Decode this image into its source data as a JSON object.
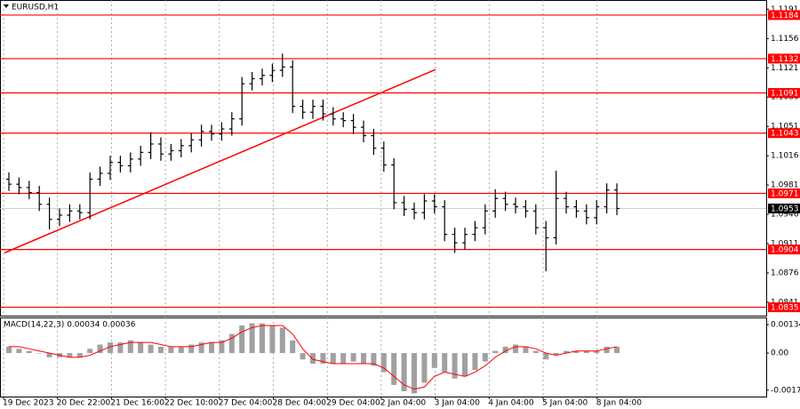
{
  "chart_data": {
    "type": "candlestick",
    "title": "EURUSD,H1",
    "x_labels": [
      "19 Dec 2023",
      "20 Dec 22:00",
      "21 Dec 16:00",
      "22 Dec 10:00",
      "27 Dec 04:00",
      "28 Dec 04:00",
      "29 Dec 04:00",
      "2 Jan 04:00",
      "3 Jan 04:00",
      "4 Jan 04:00",
      "5 Jan 04:00",
      "8 Jan 04:00"
    ],
    "open": [
      1.0988,
      1.0982,
      1.0978,
      1.0972,
      1.0958,
      1.094,
      1.0945,
      1.095,
      1.0948,
      1.0988,
      1.0995,
      1.1008,
      1.1004,
      1.1012,
      1.102,
      1.103,
      1.1018,
      1.1022,
      1.1028,
      1.1035,
      1.1045,
      1.1042,
      1.1048,
      1.106,
      1.1102,
      1.1108,
      1.1112,
      1.1118,
      1.1122,
      1.1075,
      1.1068,
      1.1075,
      1.1066,
      1.106,
      1.1058,
      1.105,
      1.104,
      1.1025,
      1.1005,
      1.096,
      1.0952,
      1.0948,
      1.0962,
      1.0955,
      1.0922,
      1.0912,
      1.0922,
      1.093,
      1.095,
      1.0965,
      1.0958,
      1.0955,
      1.095,
      1.093,
      1.0918,
      1.0965,
      1.0955,
      1.095,
      1.0942,
      1.0955,
      1.0975
    ],
    "high": [
      1.0996,
      1.099,
      1.0986,
      1.098,
      1.0966,
      1.0953,
      1.0958,
      1.0958,
      1.0996,
      1.1003,
      1.1016,
      1.1016,
      1.102,
      1.1028,
      1.1044,
      1.1038,
      1.103,
      1.1036,
      1.1043,
      1.1053,
      1.1053,
      1.1056,
      1.1068,
      1.111,
      1.1116,
      1.112,
      1.1126,
      1.1138,
      1.113,
      1.1083,
      1.1083,
      1.1083,
      1.1074,
      1.1068,
      1.1066,
      1.1058,
      1.1048,
      1.1033,
      1.1013,
      1.0968,
      1.096,
      1.097,
      1.097,
      1.0963,
      1.093,
      1.093,
      1.0938,
      1.0958,
      1.0976,
      1.0973,
      1.0966,
      1.0963,
      1.0958,
      1.0938,
      1.0998,
      1.0973,
      1.0963,
      1.0958,
      1.0963,
      1.0983,
      1.0983
    ],
    "low": [
      1.0974,
      1.097,
      1.0964,
      1.095,
      1.0928,
      1.0932,
      1.0937,
      1.094,
      1.094,
      1.098,
      1.0987,
      1.0996,
      1.0996,
      1.1004,
      1.1012,
      1.101,
      1.101,
      1.1014,
      1.102,
      1.1027,
      1.1034,
      1.1034,
      1.104,
      1.1052,
      1.1094,
      1.11,
      1.1104,
      1.111,
      1.1067,
      1.106,
      1.106,
      1.1058,
      1.1052,
      1.105,
      1.1042,
      1.1032,
      1.1017,
      1.0997,
      1.0952,
      1.0944,
      1.094,
      1.094,
      1.0947,
      1.0914,
      1.09,
      1.0904,
      1.0914,
      1.0922,
      1.0942,
      1.095,
      1.0947,
      1.0942,
      1.0922,
      1.0878,
      1.091,
      1.0947,
      1.0942,
      1.0934,
      1.0934,
      1.0947,
      1.0945
    ],
    "close": [
      1.0982,
      1.0978,
      1.0972,
      1.0958,
      1.094,
      1.0945,
      1.095,
      1.0948,
      1.0988,
      1.0995,
      1.1008,
      1.1004,
      1.1012,
      1.102,
      1.103,
      1.1018,
      1.1022,
      1.1028,
      1.1035,
      1.1045,
      1.1042,
      1.1048,
      1.106,
      1.1102,
      1.1108,
      1.1112,
      1.1118,
      1.1122,
      1.1075,
      1.1068,
      1.1075,
      1.1066,
      1.106,
      1.1058,
      1.105,
      1.104,
      1.1025,
      1.1005,
      1.096,
      1.0952,
      1.0948,
      1.0962,
      1.0955,
      1.0922,
      1.0912,
      1.0922,
      1.093,
      1.095,
      1.0965,
      1.0958,
      1.0955,
      1.095,
      1.093,
      1.0918,
      1.0965,
      1.0955,
      1.095,
      1.0942,
      1.0955,
      1.0975,
      1.0953
    ],
    "color": "#000000",
    "ylim": [
      1.0825,
      1.1202
    ],
    "yticks": [
      1.1191,
      1.1156,
      1.1121,
      1.1086,
      1.1051,
      1.1016,
      1.0981,
      1.0946,
      1.0911,
      1.0876,
      1.0841
    ],
    "grid": true,
    "levels": {
      "values": [
        1.1184,
        1.1132,
        1.1091,
        1.1043,
        1.0971,
        1.0904,
        1.0835
      ],
      "color": "#ff0000"
    },
    "current_price": 1.0953,
    "trend_line": {
      "start": 1.09,
      "end": 1.1119,
      "color": "#ff0000"
    },
    "macd": {
      "title": "MACD(14,22,3) 0.00034 0.00036",
      "histogram": [
        0.0003,
        0.0002,
        0.0001,
        0.0,
        -0.0002,
        -0.0002,
        -0.0002,
        -0.0002,
        0.0002,
        0.0004,
        0.0005,
        0.0005,
        0.0006,
        0.0005,
        0.0004,
        0.0003,
        0.0003,
        0.0003,
        0.0004,
        0.0005,
        0.0005,
        0.0006,
        0.0009,
        0.0013,
        0.0014,
        0.0014,
        0.0013,
        0.0012,
        0.0006,
        -0.0003,
        -0.0005,
        -0.0005,
        -0.0005,
        -0.0005,
        -0.0004,
        -0.0005,
        -0.0006,
        -0.0009,
        -0.0015,
        -0.0018,
        -0.0019,
        -0.0014,
        -0.0007,
        -0.0009,
        -0.0012,
        -0.0011,
        -0.0008,
        -0.0004,
        0.0001,
        0.0003,
        0.0004,
        0.0003,
        0.0001,
        -0.0003,
        -0.0001,
        0.0001,
        0.0001,
        0.0001,
        0.0001,
        0.0003,
        0.0003
      ],
      "signal": [
        0.0003,
        0.0003,
        0.0002,
        0.0001,
        0.0,
        -0.0001,
        -0.0002,
        -0.0002,
        -0.0001,
        0.0001,
        0.0003,
        0.0004,
        0.0005,
        0.0005,
        0.0005,
        0.0004,
        0.0003,
        0.0003,
        0.0003,
        0.0004,
        0.0005,
        0.0005,
        0.0007,
        0.001,
        0.0012,
        0.0013,
        0.0013,
        0.0013,
        0.0009,
        0.0002,
        -0.0003,
        -0.0004,
        -0.0005,
        -0.0005,
        -0.0005,
        -0.0005,
        -0.0005,
        -0.0007,
        -0.0011,
        -0.0015,
        -0.0017,
        -0.0016,
        -0.0011,
        -0.0009,
        -0.001,
        -0.0011,
        -0.0009,
        -0.0006,
        -0.0002,
        0.0001,
        0.0003,
        0.0003,
        0.0002,
        0.0,
        -0.0001,
        0.0,
        0.0001,
        0.0001,
        0.0001,
        0.0002,
        0.0003
      ],
      "histogram_color": "#a0a0a0",
      "signal_color": "#ff0000",
      "ylim": [
        -0.00205,
        0.00168
      ],
      "yticks": [
        0.00134,
        {
          "value": 0,
          "label": "0.00"
        },
        -0.00175
      ]
    }
  }
}
